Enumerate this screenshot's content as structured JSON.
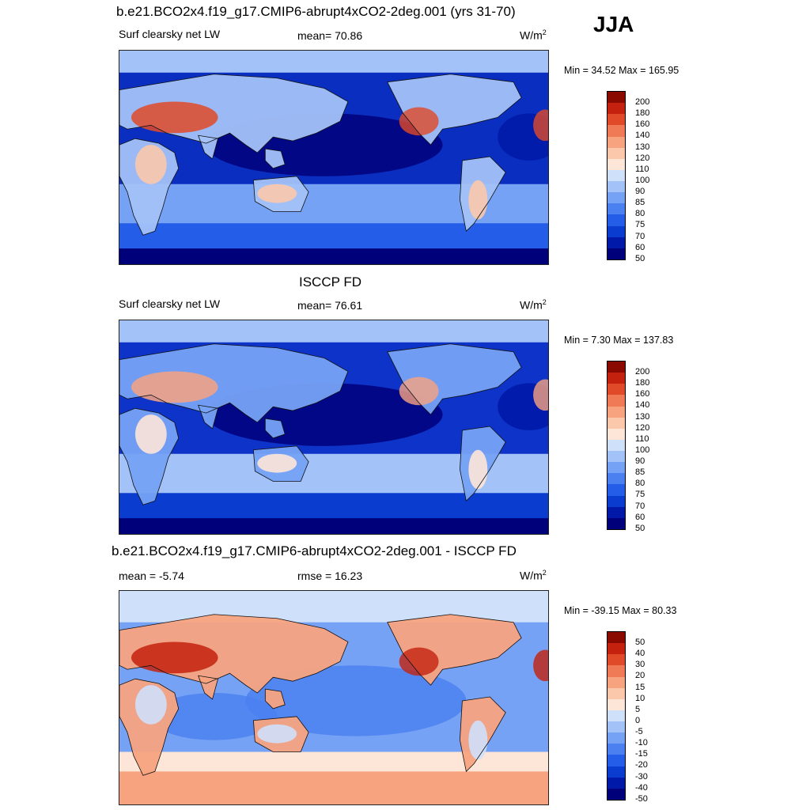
{
  "season": "JJA",
  "colors": {
    "abs": [
      "#00007a",
      "#0019a8",
      "#0a3cd0",
      "#245ee8",
      "#4a80f0",
      "#76a2f5",
      "#a3c2f8",
      "#cfe0fb",
      "#fde6d8",
      "#fbc8ab",
      "#f7a37f",
      "#f07a55",
      "#e04a28",
      "#c4220e",
      "#8a0a00"
    ],
    "diff": [
      "#00007a",
      "#0019a8",
      "#0a3cd0",
      "#245ee8",
      "#4a80f0",
      "#76a2f5",
      "#a3c2f8",
      "#cfe0fb",
      "#fde6d8",
      "#fbc8ab",
      "#f7a37f",
      "#f07a55",
      "#e04a28",
      "#c4220e",
      "#8a0a00"
    ]
  },
  "panels": [
    {
      "title": "b.e21.BCO2x4.f19_g17.CMIP6-abrupt4xCO2-2deg.001 (yrs 31-70)",
      "left_label": "Surf clearsky net LW",
      "center_label": "mean=  70.86",
      "units": "W/m",
      "units_sup": "2",
      "minmax": "Min =  34.52 Max = 165.95",
      "colorbar_labels": [
        "200",
        "180",
        "160",
        "140",
        "130",
        "120",
        "110",
        "100",
        "90",
        "85",
        "80",
        "75",
        "70",
        "60",
        "50"
      ],
      "map_type": "model"
    },
    {
      "title": "ISCCP FD",
      "left_label": "Surf clearsky net LW",
      "center_label": "mean=  76.61",
      "units": "W/m",
      "units_sup": "2",
      "minmax": "Min =   7.30 Max = 137.83",
      "colorbar_labels": [
        "200",
        "180",
        "160",
        "140",
        "130",
        "120",
        "110",
        "100",
        "90",
        "85",
        "80",
        "75",
        "70",
        "60",
        "50"
      ],
      "map_type": "obs"
    },
    {
      "title": "b.e21.BCO2x4.f19_g17.CMIP6-abrupt4xCO2-2deg.001 - ISCCP FD",
      "left_label": "mean =  -5.74",
      "center_label": "rmse =  16.23",
      "units": "W/m",
      "units_sup": "2",
      "minmax": "Min = -39.15 Max =  80.33",
      "colorbar_labels": [
        "50",
        "40",
        "30",
        "20",
        "15",
        "10",
        "5",
        "0",
        "-5",
        "-10",
        "-15",
        "-20",
        "-30",
        "-40",
        "-50"
      ],
      "map_type": "diff"
    }
  ]
}
